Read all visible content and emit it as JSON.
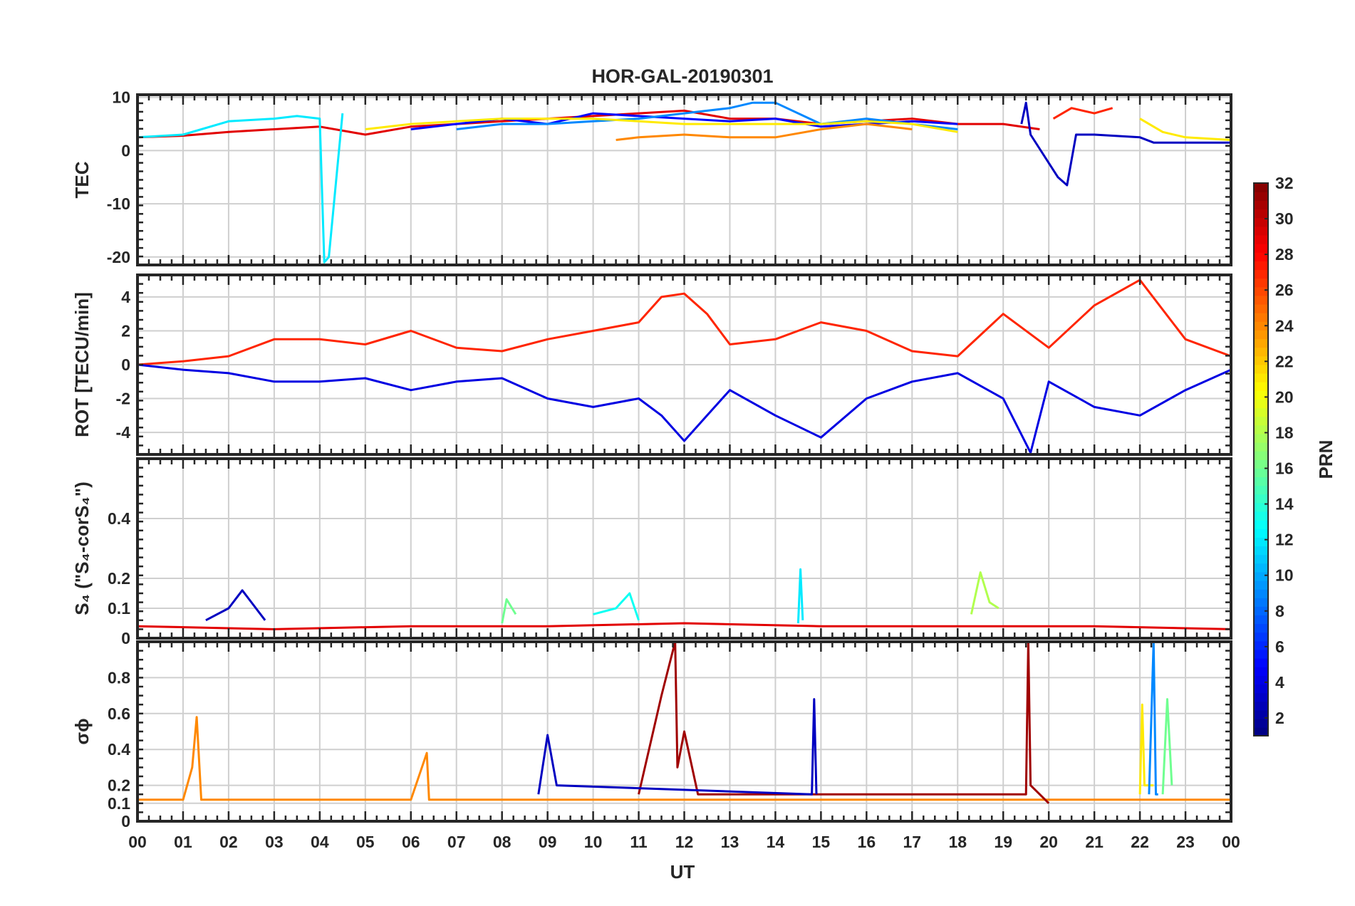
{
  "chart_data": {
    "type": "line",
    "title": "HOR-GAL-20190301",
    "xlabel": "UT",
    "x_range": [
      0,
      24
    ],
    "x_tick_labels": [
      "00",
      "01",
      "02",
      "03",
      "04",
      "05",
      "06",
      "07",
      "08",
      "09",
      "10",
      "11",
      "12",
      "13",
      "14",
      "15",
      "16",
      "17",
      "18",
      "19",
      "20",
      "21",
      "22",
      "23",
      "00"
    ],
    "colorbar": {
      "label": "PRN",
      "range": [
        1,
        32
      ],
      "tick_labels": [
        "2",
        "4",
        "6",
        "8",
        "10",
        "12",
        "14",
        "16",
        "18",
        "20",
        "22",
        "24",
        "26",
        "28",
        "30",
        "32"
      ],
      "colormap": "jet"
    },
    "panels": [
      {
        "id": "tec",
        "ylabel": "TEC",
        "ylim": [
          -21.5,
          10.5
        ],
        "yticks": [
          -20,
          -10,
          0,
          10
        ],
        "ytick_labels": [
          "-20",
          "-10",
          "0",
          "10"
        ],
        "series": [
          {
            "prn": 29,
            "x": [
              0,
              1,
              2,
              3,
              4,
              5,
              6,
              7,
              8,
              9,
              10,
              11,
              12,
              13,
              14,
              15,
              16,
              17,
              18,
              19,
              19.8
            ],
            "y": [
              2.5,
              2.8,
              3.5,
              4,
              4.5,
              3,
              4.5,
              5,
              5.5,
              6,
              6.5,
              7,
              7.5,
              6,
              6,
              5,
              5.5,
              6,
              5,
              5,
              4
            ]
          },
          {
            "prn": 12,
            "x": [
              0,
              1,
              2,
              3,
              3.5,
              4,
              4.1,
              4.2,
              4.5
            ],
            "y": [
              2.5,
              3,
              5.5,
              6,
              6.5,
              6,
              -21,
              -20,
              7
            ]
          },
          {
            "prn": 5,
            "x": [
              6,
              7,
              8,
              9,
              10,
              11,
              12,
              13,
              14,
              15,
              16,
              17,
              18
            ],
            "y": [
              4,
              5,
              6,
              5,
              7,
              6.5,
              6,
              5.5,
              6,
              4.5,
              5,
              5.5,
              5
            ]
          },
          {
            "prn": 9,
            "x": [
              7,
              8,
              9,
              10,
              11,
              12,
              13,
              13.5,
              14,
              15,
              16,
              17,
              18
            ],
            "y": [
              4,
              5,
              5,
              5.5,
              6,
              7,
              8,
              9,
              9,
              5,
              6,
              5,
              4
            ]
          },
          {
            "prn": 21,
            "x": [
              5,
              6,
              7,
              8,
              9,
              10,
              11,
              12,
              13,
              14,
              15,
              16,
              17,
              18
            ],
            "y": [
              4,
              5,
              5.5,
              6,
              6,
              6,
              5.5,
              5,
              5,
              5,
              5,
              5.5,
              5,
              3.5
            ]
          },
          {
            "prn": 24,
            "x": [
              10.5,
              11,
              12,
              13,
              14,
              15,
              16,
              17
            ],
            "y": [
              2,
              2.5,
              3,
              2.5,
              2.5,
              4,
              5,
              4
            ]
          },
          {
            "prn": 3,
            "x": [
              19.4,
              19.5,
              19.6,
              20.2,
              20.4,
              20.6,
              21,
              22,
              22.3,
              23,
              24
            ],
            "y": [
              5,
              9,
              3,
              -5,
              -6.5,
              3,
              3,
              2.5,
              1.5,
              1.5,
              1.5
            ]
          },
          {
            "prn": 21,
            "x": [
              22,
              22.5,
              23,
              24
            ],
            "y": [
              6,
              3.5,
              2.5,
              2
            ]
          },
          {
            "prn": 27,
            "x": [
              20.1,
              20.5,
              21,
              21.4
            ],
            "y": [
              6,
              8,
              7,
              8
            ]
          }
        ]
      },
      {
        "id": "rot",
        "ylabel": "ROT [TECU/min]",
        "ylim": [
          -5.3,
          5.3
        ],
        "yticks": [
          -4,
          -2,
          0,
          2,
          4
        ],
        "ytick_labels": [
          "-4",
          "-2",
          "0",
          "2",
          "4"
        ],
        "series": [
          {
            "prn": 27,
            "x": [
              0,
              1,
              2,
              3,
              4,
              5,
              6,
              7,
              8,
              9,
              10,
              11,
              11.5,
              12,
              12.5,
              13,
              14,
              15,
              16,
              17,
              18,
              19,
              20,
              21,
              22,
              23,
              24
            ],
            "y": [
              0,
              0.2,
              0.5,
              1.5,
              1.5,
              1.2,
              2,
              1,
              0.8,
              1.5,
              2,
              2.5,
              4,
              4.2,
              3,
              1.2,
              1.5,
              2.5,
              2,
              0.8,
              0.5,
              3,
              1,
              3.5,
              5,
              1.5,
              0.5
            ]
          },
          {
            "prn": 4,
            "x": [
              0,
              1,
              2,
              3,
              4,
              5,
              6,
              7,
              8,
              9,
              10,
              11,
              11.5,
              12,
              12.5,
              13,
              14,
              15,
              16,
              17,
              18,
              19,
              19.6,
              20,
              21,
              22,
              23,
              24
            ],
            "y": [
              0,
              -0.3,
              -0.5,
              -1,
              -1,
              -0.8,
              -1.5,
              -1,
              -0.8,
              -2,
              -2.5,
              -2,
              -3,
              -4.5,
              -3,
              -1.5,
              -3,
              -4.3,
              -2,
              -1,
              -0.5,
              -2,
              -5.2,
              -1,
              -2.5,
              -3,
              -1.5,
              -0.3
            ]
          }
        ]
      },
      {
        "id": "s4",
        "ylabel": "S₄ (\"S₄-corS₄\")",
        "ylim": [
          0,
          0.6
        ],
        "yticks": [
          0,
          0.1,
          0.2,
          0.4
        ],
        "ytick_labels": [
          "0",
          "0.1",
          "0.2",
          "0.4"
        ],
        "series": [
          {
            "prn": 3,
            "x": [
              1.5,
              2,
              2.3,
              2.5,
              2.8
            ],
            "y": [
              0.06,
              0.1,
              0.16,
              0.12,
              0.06
            ]
          },
          {
            "prn": 13,
            "x": [
              10,
              10.5,
              10.8,
              11
            ],
            "y": [
              0.08,
              0.1,
              0.15,
              0.06
            ]
          },
          {
            "prn": 12,
            "x": [
              14.5,
              14.55,
              14.6
            ],
            "y": [
              0.05,
              0.23,
              0.06
            ]
          },
          {
            "prn": 18,
            "x": [
              18.3,
              18.5,
              18.7,
              18.9
            ],
            "y": [
              0.08,
              0.22,
              0.12,
              0.1
            ]
          },
          {
            "prn": 16,
            "x": [
              8,
              8.1,
              8.3
            ],
            "y": [
              0.05,
              0.13,
              0.08
            ]
          },
          {
            "prn": 29,
            "x": [
              0,
              3,
              6,
              9,
              12,
              15,
              18,
              21,
              24
            ],
            "y": [
              0.04,
              0.03,
              0.04,
              0.04,
              0.05,
              0.04,
              0.04,
              0.04,
              0.03
            ]
          }
        ]
      },
      {
        "id": "sigma_phi",
        "ylabel": "σϕ",
        "ylim": [
          0,
          1
        ],
        "yticks": [
          0,
          0.1,
          0.2,
          0.4,
          0.6,
          0.8
        ],
        "ytick_labels": [
          "0",
          "0.1",
          "0.2",
          "0.4",
          "0.6",
          "0.8"
        ],
        "series": [
          {
            "prn": 24,
            "x": [
              0,
              1,
              1.2,
              1.3,
              1.4,
              6,
              6.35,
              6.4,
              24
            ],
            "y": [
              0.12,
              0.12,
              0.3,
              0.58,
              0.12,
              0.12,
              0.38,
              0.12,
              0.12
            ]
          },
          {
            "prn": 31,
            "x": [
              11,
              11.5,
              11.8,
              11.85,
              12,
              12.3,
              19.5,
              19.55,
              19.6,
              20
            ],
            "y": [
              0.15,
              0.7,
              1,
              0.3,
              0.5,
              0.15,
              0.15,
              1,
              0.2,
              0.1
            ]
          },
          {
            "prn": 3,
            "x": [
              8.8,
              9,
              9.2,
              14.8,
              14.85,
              14.9
            ],
            "y": [
              0.15,
              0.48,
              0.2,
              0.15,
              0.68,
              0.15
            ]
          },
          {
            "prn": 21,
            "x": [
              22,
              22.05,
              22.1,
              22.3
            ],
            "y": [
              0.15,
              0.65,
              0.2,
              0.2
            ]
          },
          {
            "prn": 9,
            "x": [
              22.2,
              22.3,
              22.35,
              22.4
            ],
            "y": [
              0.15,
              1,
              0.15,
              0.15
            ]
          },
          {
            "prn": 16,
            "x": [
              22.5,
              22.6,
              22.7
            ],
            "y": [
              0.15,
              0.68,
              0.2
            ]
          }
        ]
      }
    ]
  }
}
